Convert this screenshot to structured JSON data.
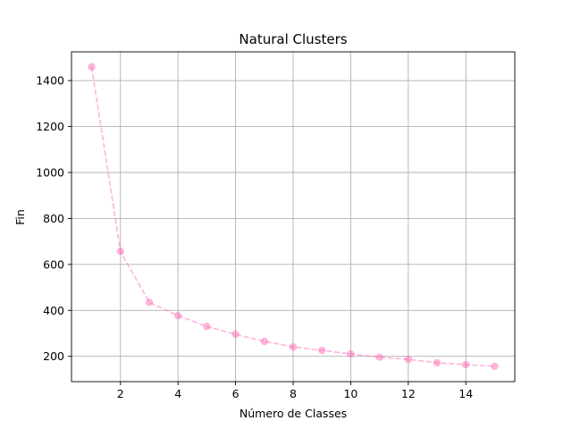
{
  "chart_data": {
    "type": "line",
    "title": "Natural Clusters",
    "xlabel": "Número de Classes",
    "ylabel": "Fin",
    "x": [
      1,
      2,
      3,
      4,
      5,
      6,
      7,
      8,
      9,
      10,
      11,
      12,
      13,
      14,
      15
    ],
    "series": [
      {
        "values": [
          1460,
          657,
          435,
          377,
          330,
          296,
          265,
          241,
          226,
          210,
          196,
          187,
          172,
          164,
          157
        ],
        "color": "#ff69b4",
        "line_style": "dashed",
        "marker": "circle"
      }
    ],
    "xlim": [
      0.3,
      15.7
    ],
    "ylim": [
      90,
      1525
    ],
    "xticks": [
      2,
      4,
      6,
      8,
      10,
      12,
      14
    ],
    "yticks": [
      200,
      400,
      600,
      800,
      1000,
      1200,
      1400
    ],
    "grid": true,
    "legend": "none"
  }
}
